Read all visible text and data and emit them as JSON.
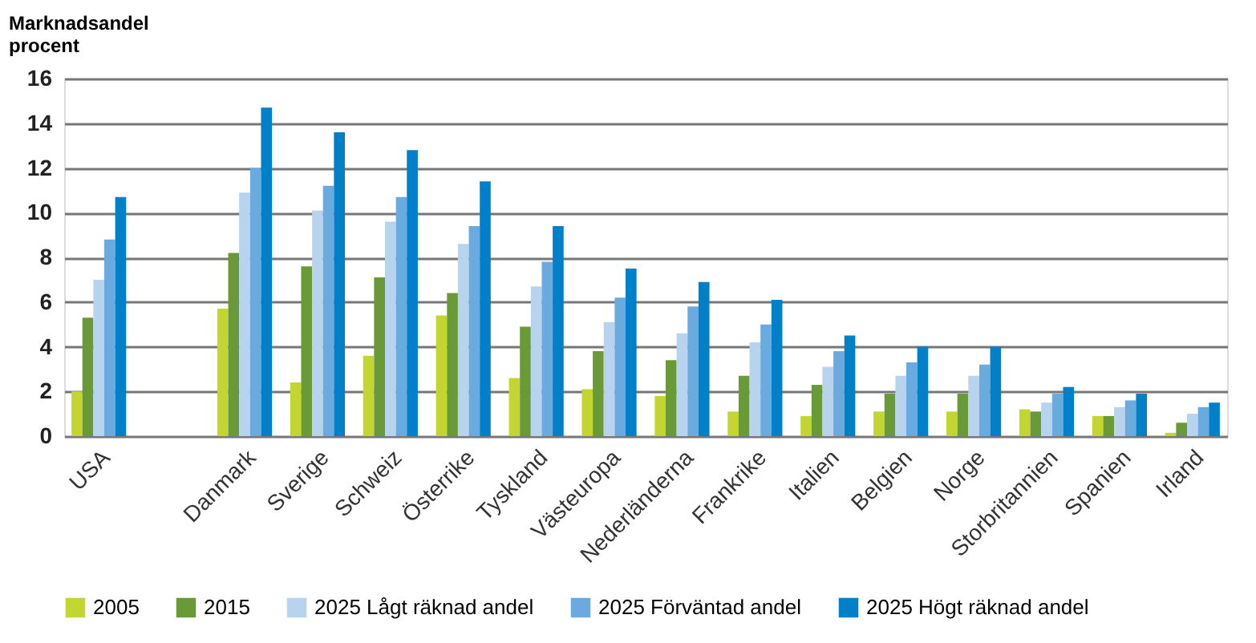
{
  "chart_data": {
    "type": "bar",
    "ylabel": "Marknadsandel\nprocent",
    "categories": [
      "USA",
      null,
      "Danmark",
      "Sverige",
      "Schweiz",
      "Österrike",
      "Tyskland",
      "Västeuropa",
      "Nederländerna",
      "Frankrike",
      "Italien",
      "Belgien",
      "Norge",
      "Storbritannien",
      "Spanien",
      "Irland"
    ],
    "series": [
      {
        "name": "2005",
        "color": "#c2d530",
        "values": [
          2.0,
          null,
          5.7,
          2.4,
          3.6,
          5.4,
          2.6,
          2.1,
          1.8,
          1.1,
          0.9,
          1.1,
          1.1,
          1.2,
          0.9,
          0.15
        ]
      },
      {
        "name": "2015",
        "color": "#6a9a37",
        "values": [
          5.3,
          null,
          8.2,
          7.6,
          7.1,
          6.4,
          4.9,
          3.8,
          3.4,
          2.7,
          2.3,
          1.9,
          1.9,
          1.1,
          0.9,
          0.6
        ]
      },
      {
        "name": "2025 Lågt räknad andel",
        "color": "#b8d3ee",
        "values": [
          7.0,
          null,
          10.9,
          10.1,
          9.6,
          8.6,
          6.7,
          5.1,
          4.6,
          4.2,
          3.1,
          2.7,
          2.7,
          1.5,
          1.3,
          1.0
        ]
      },
      {
        "name": "2025 Förväntad andel",
        "color": "#6aaadf",
        "values": [
          8.8,
          null,
          12.0,
          11.2,
          10.7,
          9.4,
          7.8,
          6.2,
          5.8,
          5.0,
          3.8,
          3.3,
          3.2,
          1.9,
          1.6,
          1.3
        ]
      },
      {
        "name": "2025 Högt räknad andel",
        "color": "#0080c8",
        "values": [
          10.7,
          null,
          14.7,
          13.6,
          12.8,
          11.4,
          9.4,
          7.5,
          6.9,
          6.1,
          4.5,
          4.0,
          4.0,
          2.2,
          1.9,
          1.5
        ]
      }
    ],
    "ylim": [
      0,
      16
    ],
    "yticks": [
      0,
      2,
      4,
      6,
      8,
      10,
      12,
      14,
      16
    ],
    "grid": "y",
    "legend": "bottom"
  }
}
